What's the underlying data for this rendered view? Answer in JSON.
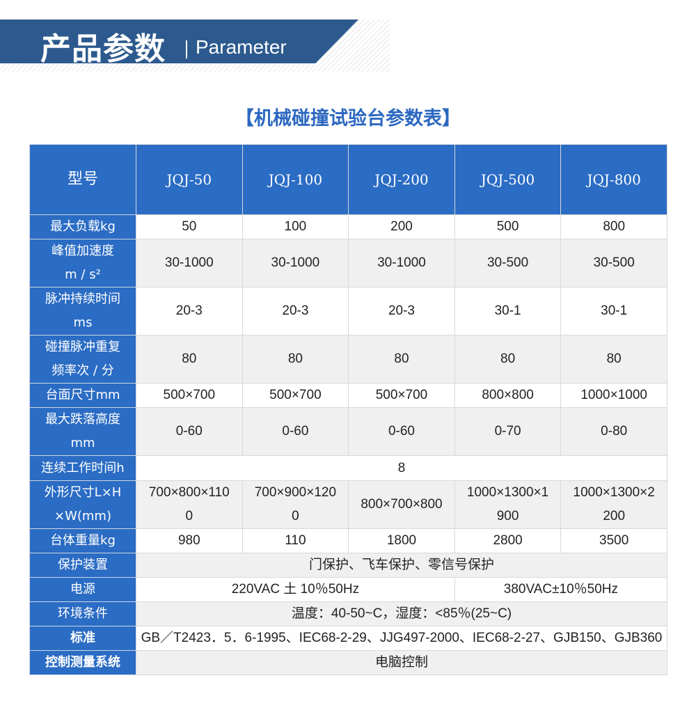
{
  "banner": {
    "title": "产品参数",
    "subtitle": "Parameter"
  },
  "table_title": "【机械碰撞试验台参数表】",
  "colors": {
    "banner": "#2d5a8e",
    "header": "#2b6cc4",
    "title": "#2b67c0",
    "alt_row": "#f0f0f0"
  },
  "header": {
    "label": "型号",
    "models": [
      "JQJ-50",
      "JQJ-100",
      "JQJ-200",
      "JQJ-500",
      "JQJ-800"
    ]
  },
  "rows": [
    {
      "label": [
        "最大负载kg"
      ],
      "cells": [
        {
          "v": [
            "50"
          ]
        },
        {
          "v": [
            "100"
          ]
        },
        {
          "v": [
            "200"
          ]
        },
        {
          "v": [
            "500"
          ]
        },
        {
          "v": [
            "800"
          ]
        }
      ]
    },
    {
      "label": [
        "峰值加速度",
        "m / s²"
      ],
      "cells": [
        {
          "v": [
            "30-1000"
          ]
        },
        {
          "v": [
            "30-1000"
          ]
        },
        {
          "v": [
            "30-1000"
          ]
        },
        {
          "v": [
            "30-500"
          ]
        },
        {
          "v": [
            "30-500"
          ]
        }
      ]
    },
    {
      "label": [
        "脉冲持续时间",
        "ms"
      ],
      "cells": [
        {
          "v": [
            "20-3"
          ]
        },
        {
          "v": [
            "20-3"
          ]
        },
        {
          "v": [
            "20-3"
          ]
        },
        {
          "v": [
            "30-1"
          ]
        },
        {
          "v": [
            "30-1"
          ]
        }
      ]
    },
    {
      "label": [
        "碰撞脉冲重复",
        "频率次 / 分"
      ],
      "cells": [
        {
          "v": [
            "80"
          ]
        },
        {
          "v": [
            "80"
          ]
        },
        {
          "v": [
            "80"
          ]
        },
        {
          "v": [
            "80"
          ]
        },
        {
          "v": [
            "80"
          ]
        }
      ]
    },
    {
      "label": [
        "台面尺寸mm"
      ],
      "cells": [
        {
          "v": [
            "500×700"
          ]
        },
        {
          "v": [
            "500×700"
          ]
        },
        {
          "v": [
            "500×700"
          ]
        },
        {
          "v": [
            "800×800"
          ]
        },
        {
          "v": [
            "1000×1000"
          ]
        }
      ]
    },
    {
      "label": [
        "最大跌落高度",
        "mm"
      ],
      "cells": [
        {
          "v": [
            "0-60"
          ]
        },
        {
          "v": [
            "0-60"
          ]
        },
        {
          "v": [
            "0-60"
          ]
        },
        {
          "v": [
            "0-70"
          ]
        },
        {
          "v": [
            "0-80"
          ]
        }
      ]
    },
    {
      "label": [
        "连续工作时间h"
      ],
      "cells": [
        {
          "v": [
            "8"
          ],
          "span": 5
        }
      ]
    },
    {
      "label": [
        "外形尺寸L×H",
        "×W(mm)"
      ],
      "cells": [
        {
          "v": [
            "700×800×110",
            "0"
          ]
        },
        {
          "v": [
            "700×900×120",
            "0"
          ]
        },
        {
          "v": [
            "800×700×800"
          ]
        },
        {
          "v": [
            "1000×1300×1",
            "900"
          ]
        },
        {
          "v": [
            "1000×1300×2",
            "200"
          ]
        }
      ]
    },
    {
      "label": [
        "台体重量kg"
      ],
      "cells": [
        {
          "v": [
            "980"
          ]
        },
        {
          "v": [
            "110"
          ]
        },
        {
          "v": [
            "1800"
          ]
        },
        {
          "v": [
            "2800"
          ]
        },
        {
          "v": [
            "3500"
          ]
        }
      ]
    },
    {
      "label": [
        "保护装置"
      ],
      "cells": [
        {
          "v": [
            "门保护、飞车保护、零信号保护"
          ],
          "span": 5
        }
      ]
    },
    {
      "label": [
        "电源"
      ],
      "cells": [
        {
          "v": [
            "220VAC 土 10％50Hz"
          ],
          "span": 3
        },
        {
          "v": [
            "380VAC±10％50Hz"
          ],
          "span": 2
        }
      ]
    },
    {
      "label": [
        "环境条件"
      ],
      "cells": [
        {
          "v": [
            "温度：40-50~C，湿度：<85％(25~C)"
          ],
          "span": 5
        }
      ]
    },
    {
      "label": [
        "标准"
      ],
      "bold": true,
      "cells": [
        {
          "v": [
            "GB／T2423．5．6-1995、IEC68-2-29、JJG497-2000、IEC68-2-27、GJB150、GJB360"
          ],
          "span": 5
        }
      ]
    },
    {
      "label": [
        "控制测量系统"
      ],
      "bold": true,
      "cells": [
        {
          "v": [
            "电脑控制"
          ],
          "span": 5
        }
      ]
    }
  ]
}
